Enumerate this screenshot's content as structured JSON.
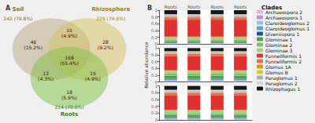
{
  "chart_data": [
    {
      "type": "venn",
      "title": "A",
      "series": [
        {
          "name": "Soil",
          "count_label": "242 (79.8%)",
          "color": "#b8a882",
          "label_color": "#7a6a40"
        },
        {
          "name": "Rhizosphere",
          "count_label": "226 (74.6%)",
          "color": "#d4c060",
          "label_color": "#9a8000"
        },
        {
          "name": "Roots",
          "count_label": "214 (70.6%)",
          "color": "#80c040",
          "label_color": "#3a8010"
        }
      ],
      "regions": [
        {
          "sets": [
            "Soil"
          ],
          "label": "46\n(15.2%)"
        },
        {
          "sets": [
            "Soil",
            "Rhizosphere"
          ],
          "label": "15\n(4.9%)"
        },
        {
          "sets": [
            "Rhizosphere"
          ],
          "label": "28\n(9.2%)"
        },
        {
          "sets": [
            "Soil",
            "Rhizosphere",
            "Roots"
          ],
          "label": "168\n(55.4%)"
        },
        {
          "sets": [
            "Soil",
            "Roots"
          ],
          "label": "13\n(4.3%)"
        },
        {
          "sets": [
            "Rhizosphere",
            "Roots"
          ],
          "label": "15\n(4.9%)"
        },
        {
          "sets": [
            "Roots"
          ],
          "label": "18\n(5.9%)"
        }
      ]
    },
    {
      "type": "bar",
      "title": "B",
      "ylabel": "Relative abundance",
      "stacked": true,
      "grid": false,
      "legend_title": "Clades",
      "legend": "right",
      "categories": [
        "Roots",
        "Roots",
        "Roots",
        "Roots"
      ],
      "ylim": [
        0,
        1
      ],
      "yticks": [
        0,
        0.2,
        0.4,
        0.6,
        0.8,
        1
      ],
      "series": [
        {
          "name": "Archaeospora 2",
          "color": "#e8b4d8",
          "values": [
            [
              0.005,
              0.005,
              0.005,
              0.005
            ],
            [
              0.005,
              0.005,
              0.005,
              0.005
            ],
            [
              0.005,
              0.005,
              0.005,
              0.005
            ]
          ]
        },
        {
          "name": "Archaeospora 1",
          "color": "#c090d0",
          "values": [
            [
              0.01,
              0.01,
              0.01,
              0.01
            ],
            [
              0.01,
              0.01,
              0.01,
              0.01
            ],
            [
              0.01,
              0.01,
              0.01,
              0.01
            ]
          ]
        },
        {
          "name": "Claroideoglomus 2",
          "color": "#90c0e0",
          "values": [
            [
              0.015,
              0.015,
              0.015,
              0.015
            ],
            [
              0.04,
              0.04,
              0.04,
              0.04
            ],
            [
              0.03,
              0.03,
              0.03,
              0.03
            ]
          ]
        },
        {
          "name": "Claroideoglomus 1",
          "color": "#60a0d0",
          "values": [
            [
              0.01,
              0.01,
              0.01,
              0.01
            ],
            [
              0.02,
              0.02,
              0.02,
              0.02
            ],
            [
              0.015,
              0.015,
              0.015,
              0.015
            ]
          ]
        },
        {
          "name": "Diversispora 1",
          "color": "#2050a0",
          "values": [
            [
              0.01,
              0.01,
              0.01,
              0.01
            ],
            [
              0.02,
              0.02,
              0.02,
              0.02
            ],
            [
              0.015,
              0.015,
              0.015,
              0.015
            ]
          ]
        },
        {
          "name": "Glominae 1",
          "color": "#50a050",
          "values": [
            [
              0.04,
              0.04,
              0.04,
              0.04
            ],
            [
              0.09,
              0.09,
              0.09,
              0.09
            ],
            [
              0.07,
              0.07,
              0.07,
              0.07
            ]
          ]
        },
        {
          "name": "Glominae 2",
          "color": "#80c060",
          "values": [
            [
              0.05,
              0.05,
              0.05,
              0.05
            ],
            [
              0.06,
              0.06,
              0.06,
              0.06
            ],
            [
              0.055,
              0.055,
              0.055,
              0.055
            ]
          ]
        },
        {
          "name": "Glominae 3",
          "color": "#a8d080",
          "values": [
            [
              0.08,
              0.08,
              0.08,
              0.08
            ],
            [
              0.1,
              0.1,
              0.1,
              0.1
            ],
            [
              0.09,
              0.09,
              0.09,
              0.09
            ]
          ]
        },
        {
          "name": "Funneliformis 1",
          "color": "#e03030",
          "values": [
            [
              0.5,
              0.5,
              0.5,
              0.5
            ],
            [
              0.42,
              0.42,
              0.42,
              0.42
            ],
            [
              0.44,
              0.44,
              0.44,
              0.44
            ]
          ]
        },
        {
          "name": "Funneliformis 2",
          "color": "#e87040",
          "values": [
            [
              0.07,
              0.07,
              0.07,
              0.07
            ],
            [
              0.06,
              0.06,
              0.06,
              0.06
            ],
            [
              0.065,
              0.065,
              0.065,
              0.065
            ]
          ]
        },
        {
          "name": "Glomus 1A",
          "color": "#e89010",
          "values": [
            [
              0.005,
              0.005,
              0.005,
              0.005
            ],
            [
              0.005,
              0.005,
              0.005,
              0.005
            ],
            [
              0.005,
              0.005,
              0.005,
              0.005
            ]
          ]
        },
        {
          "name": "Glomus B",
          "color": "#d0d030",
          "values": [
            [
              0.005,
              0.005,
              0.005,
              0.005
            ],
            [
              0.005,
              0.005,
              0.005,
              0.005
            ],
            [
              0.005,
              0.005,
              0.005,
              0.005
            ]
          ]
        },
        {
          "name": "Paraglomus 1",
          "color": "#b0b0b0",
          "values": [
            [
              0.04,
              0.04,
              0.04,
              0.04
            ],
            [
              0.035,
              0.035,
              0.035,
              0.035
            ],
            [
              0.04,
              0.04,
              0.04,
              0.04
            ]
          ]
        },
        {
          "name": "Paraglomus 2",
          "color": "#d8d8d8",
          "values": [
            [
              0.04,
              0.04,
              0.04,
              0.04
            ],
            [
              0.035,
              0.035,
              0.035,
              0.035
            ],
            [
              0.04,
              0.04,
              0.04,
              0.04
            ]
          ]
        },
        {
          "name": "Rhizophagus 1",
          "color": "#181818",
          "values": [
            [
              0.14,
              0.14,
              0.14,
              0.14
            ],
            [
              0.1,
              0.1,
              0.1,
              0.1
            ],
            [
              0.12,
              0.12,
              0.12,
              0.12
            ]
          ]
        }
      ]
    }
  ]
}
